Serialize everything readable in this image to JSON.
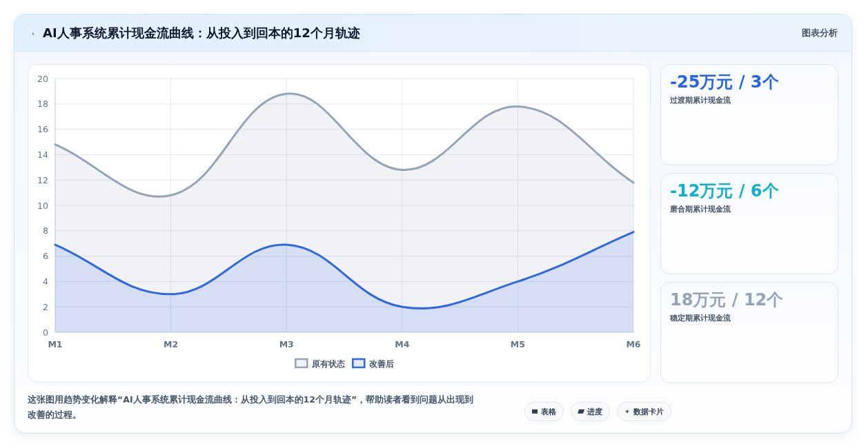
{
  "chart_data": [
    {
      "type": "area",
      "title": "AI人事系统累计现金流曲线：从投入到回本的12个月轨迹",
      "categories": [
        "M1",
        "M2",
        "M3",
        "M4",
        "M5",
        "M6"
      ],
      "series": [
        {
          "name": "原有状态",
          "color": "#94a3b8",
          "values": [
            14.8,
            10.8,
            18.8,
            12.8,
            17.8,
            11.8
          ]
        },
        {
          "name": "改善后",
          "color": "#2f67e0",
          "values": [
            6.9,
            3.0,
            6.9,
            2.0,
            4.0,
            7.9
          ]
        }
      ],
      "ylim": [
        0,
        20
      ],
      "yticks": [
        0,
        2,
        4,
        6,
        8,
        10,
        12,
        14,
        16,
        18,
        20
      ],
      "grid": true,
      "legend": "bottom",
      "annotations": [
        "图表分析",
        "这张图用趋势变化解释“AI人事系统累计现金流曲线：从投入到回本的12个月轨迹”，帮助读者看到问题从出现到改善的过程。",
        "表格",
        "进度",
        "数据卡片"
      ]
    },
    {
      "type": "other",
      "annotations": [
        "-25万元 / 3个",
        "过渡期累计现金流",
        "-12万元 / 6个",
        "磨合期累计现金流",
        "18万元 / 12个",
        "稳定期累计现金流"
      ]
    }
  ]
}
